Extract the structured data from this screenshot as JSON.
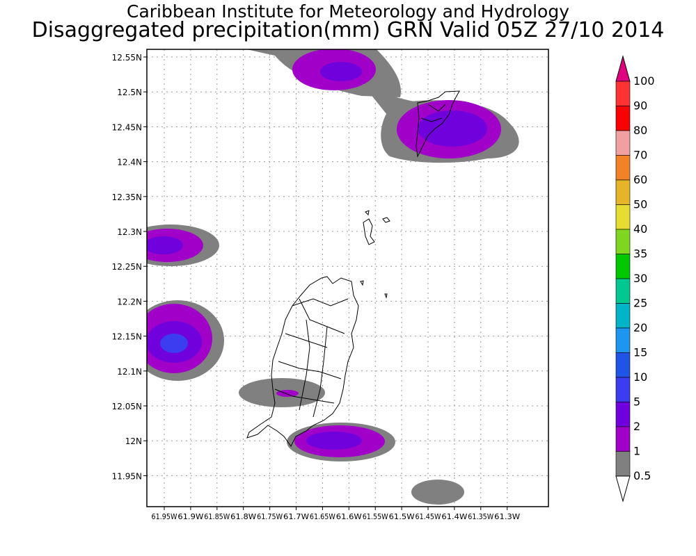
{
  "header": {
    "title": "Caribbean Institute for Meteorology and Hydrology",
    "subtitle": "Disaggregated precipitation(mm) GRN Valid 05Z 27/10 2014"
  },
  "map": {
    "lat_ticks": [
      "12.55N",
      "12.5N",
      "12.45N",
      "12.4N",
      "12.35N",
      "12.3N",
      "12.25N",
      "12.2N",
      "12.15N",
      "12.1N",
      "12.05N",
      "12N",
      "11.95N"
    ],
    "lon_ticks": [
      "61.95W",
      "61.9W",
      "61.85W",
      "61.8W",
      "61.75W",
      "61.7W",
      "61.65W",
      "61.6W",
      "61.55W",
      "61.5W",
      "61.45W",
      "61.4W",
      "61.35W",
      "61.3W"
    ],
    "lat_values": [
      12.55,
      12.5,
      12.45,
      12.4,
      12.35,
      12.3,
      12.25,
      12.2,
      12.15,
      12.1,
      12.05,
      12.0,
      11.95
    ],
    "lon_values": [
      -61.95,
      -61.9,
      -61.85,
      -61.8,
      -61.75,
      -61.7,
      -61.65,
      -61.6,
      -61.55,
      -61.5,
      -61.45,
      -61.4,
      -61.35,
      -61.3
    ],
    "grid": true
  },
  "colorbar": {
    "levels": [
      "0.5",
      "1",
      "2",
      "5",
      "10",
      "15",
      "20",
      "25",
      "30",
      "35",
      "40",
      "50",
      "60",
      "70",
      "80",
      "90",
      "100"
    ],
    "colors": [
      "#808080",
      "#a000c8",
      "#7000dc",
      "#3c3cf0",
      "#1f55e6",
      "#1e96f0",
      "#00b4c8",
      "#00c890",
      "#00c800",
      "#7fd520",
      "#e6dc32",
      "#e6b428",
      "#f08228",
      "#f0a0a0",
      "#fa0000",
      "#ff3333"
    ],
    "top_arrow_color": "#e0007f"
  },
  "precip_regions": [
    {
      "lon": -61.64,
      "lat": 12.527,
      "max": "2"
    },
    {
      "lon": -61.44,
      "lat": 12.45,
      "max": "2"
    },
    {
      "lon": -61.93,
      "lat": 12.28,
      "max": "2"
    },
    {
      "lon": -61.92,
      "lat": 12.14,
      "max": "5"
    },
    {
      "lon": -61.71,
      "lat": 12.068,
      "max": "2"
    },
    {
      "lon": -61.64,
      "lat": 11.998,
      "max": "2"
    },
    {
      "lon": -61.47,
      "lat": 11.925,
      "max": "1"
    }
  ]
}
